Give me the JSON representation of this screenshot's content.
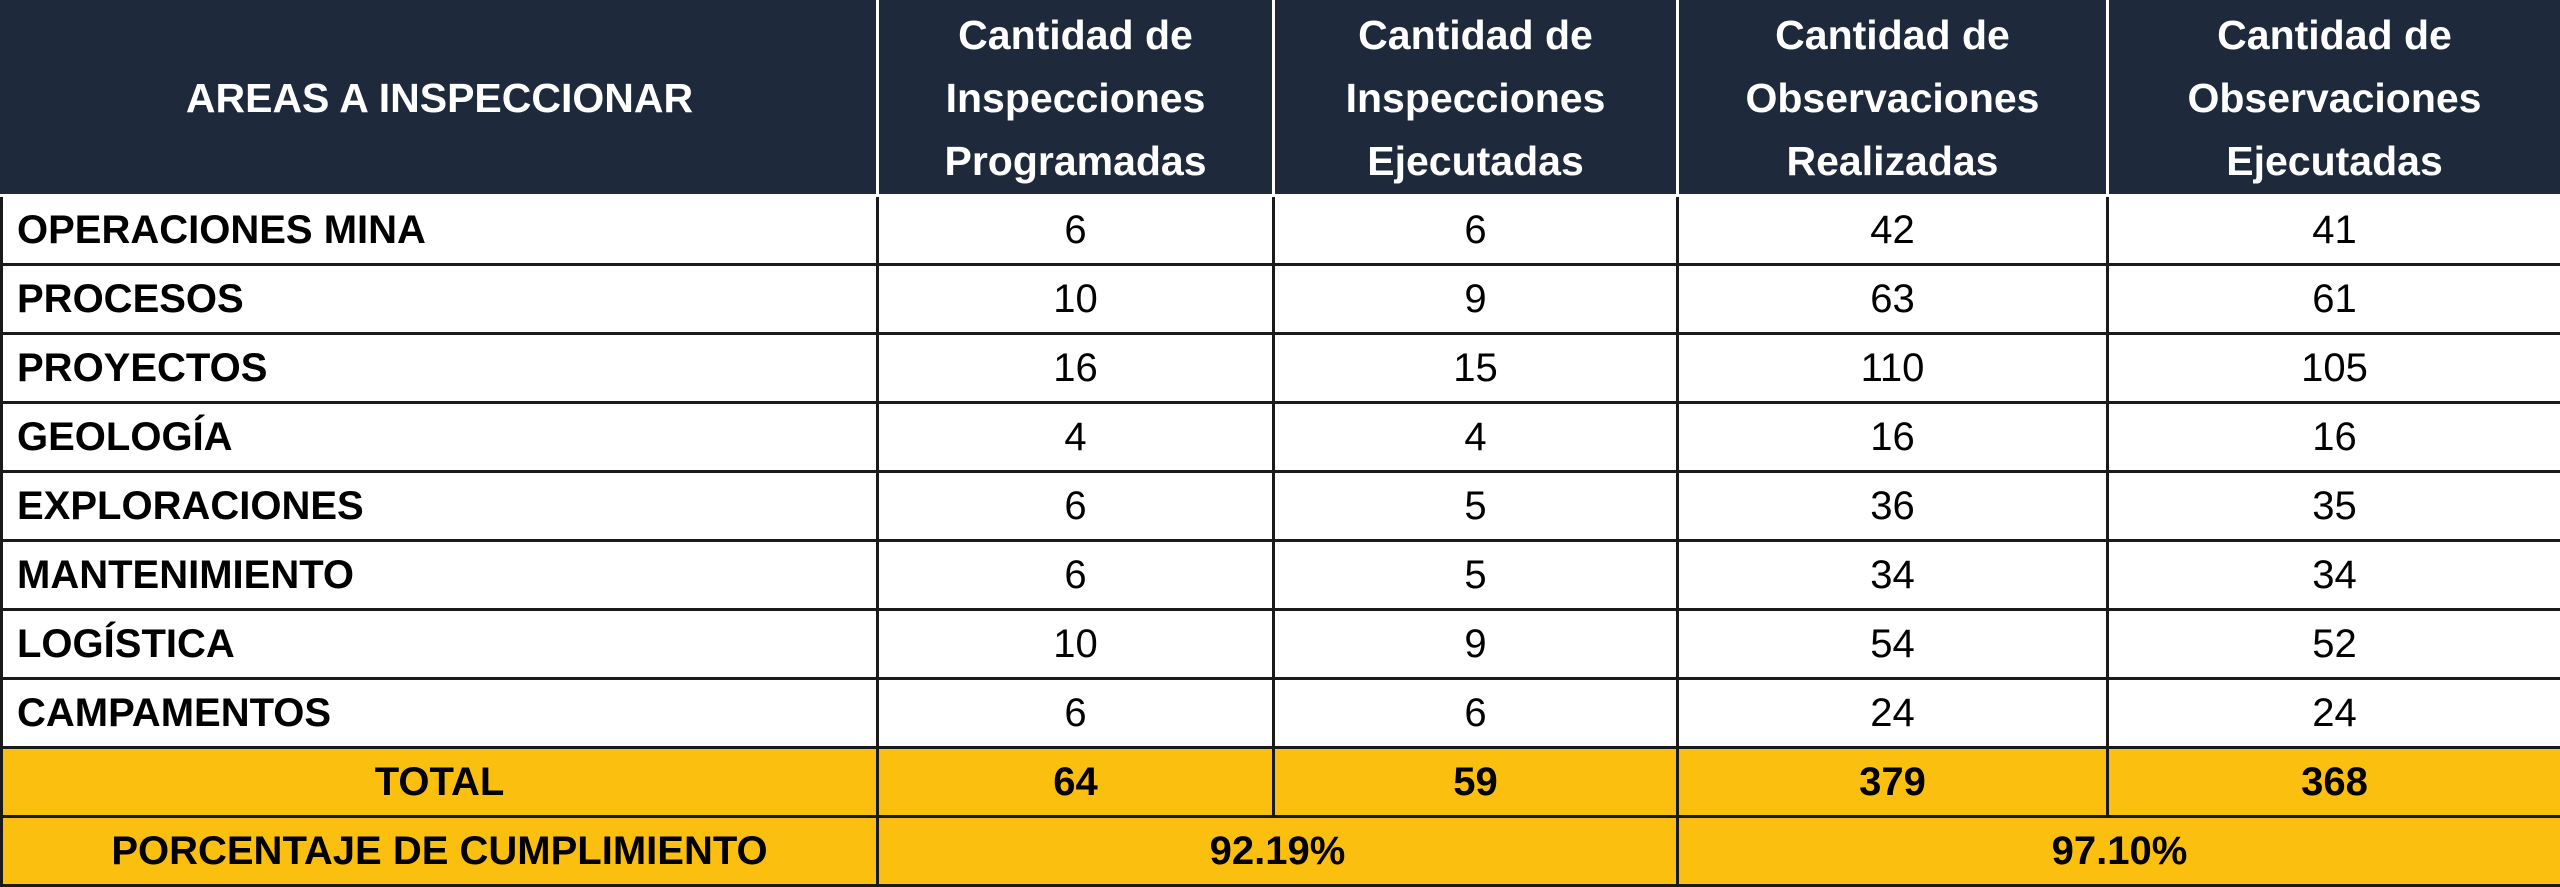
{
  "header": {
    "area": "AREAS A INSPECCIONAR",
    "col1": [
      "Cantidad de",
      "Inspecciones",
      "Programadas"
    ],
    "col2": [
      "Cantidad de",
      "Inspecciones",
      "Ejecutadas"
    ],
    "col3": [
      "Cantidad de",
      "Observaciones",
      "Realizadas"
    ],
    "col4": [
      "Cantidad de",
      "Observaciones",
      "Ejecutadas"
    ]
  },
  "rows": [
    {
      "area": "OPERACIONES MINA",
      "prog": "6",
      "ejec": "6",
      "obs_real": "42",
      "obs_ejec": "41"
    },
    {
      "area": "PROCESOS",
      "prog": "10",
      "ejec": "9",
      "obs_real": "63",
      "obs_ejec": "61"
    },
    {
      "area": "PROYECTOS",
      "prog": "16",
      "ejec": "15",
      "obs_real": "110",
      "obs_ejec": "105"
    },
    {
      "area": "GEOLOGÍA",
      "prog": "4",
      "ejec": "4",
      "obs_real": "16",
      "obs_ejec": "16"
    },
    {
      "area": "EXPLORACIONES",
      "prog": "6",
      "ejec": "5",
      "obs_real": "36",
      "obs_ejec": "35"
    },
    {
      "area": "MANTENIMIENTO",
      "prog": "6",
      "ejec": "5",
      "obs_real": "34",
      "obs_ejec": "34"
    },
    {
      "area": "LOGÍSTICA",
      "prog": "10",
      "ejec": "9",
      "obs_real": "54",
      "obs_ejec": "52"
    },
    {
      "area": "CAMPAMENTOS",
      "prog": "6",
      "ejec": "6",
      "obs_real": "24",
      "obs_ejec": "24"
    }
  ],
  "total": {
    "label": "TOTAL",
    "prog": "64",
    "ejec": "59",
    "obs_real": "379",
    "obs_ejec": "368"
  },
  "compliance": {
    "label": "PORCENTAJE DE CUMPLIMIENTO",
    "inspections": "92.19%",
    "observations": "97.10%"
  },
  "colors": {
    "header_bg": "#1e2a3b",
    "highlight_bg": "#fbbf10"
  }
}
